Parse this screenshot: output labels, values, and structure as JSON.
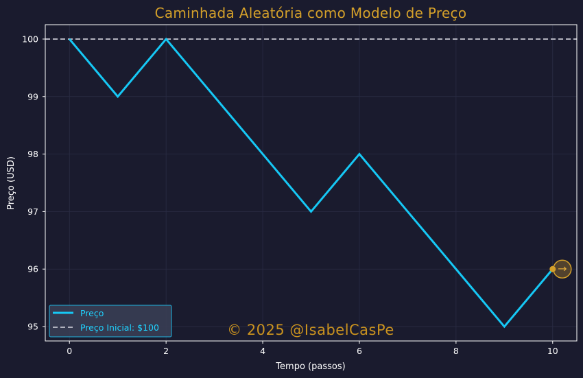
{
  "chart_data": {
    "type": "line",
    "title": "Caminhada Aleatória como Modelo de Preço",
    "xlabel": "Tempo (passos)",
    "ylabel": "Preço (USD)",
    "x": [
      0,
      1,
      2,
      3,
      4,
      5,
      6,
      7,
      8,
      9,
      10
    ],
    "series": [
      {
        "name": "Preço",
        "values": [
          100,
          99,
          100,
          99,
          98,
          97,
          98,
          97,
          96,
          95,
          96
        ],
        "color": "#16c8f5"
      }
    ],
    "reference_line": {
      "name": "Preço Inicial: $100",
      "value": 100,
      "style": "dashed",
      "color": "#d9d9e3"
    },
    "xlim": [
      -0.5,
      10.5
    ],
    "ylim": [
      94.75,
      100.25
    ],
    "xticks": [
      "0",
      "2",
      "4",
      "6",
      "8",
      "10"
    ],
    "yticks": [
      "95",
      "96",
      "97",
      "98",
      "99",
      "100"
    ],
    "grid": true,
    "legend_position": "lower-left",
    "end_marker": {
      "arrow": "→",
      "color": "#d4a02a"
    }
  },
  "watermark": "© 2025 @IsabelCasPe",
  "colors": {
    "background": "#1a1b2e",
    "axes_border": "#ffffff",
    "title": "#d4a02a",
    "grid": "#2a2c44",
    "legend_bg": "#3b4056",
    "legend_border": "#1fb4e0"
  }
}
